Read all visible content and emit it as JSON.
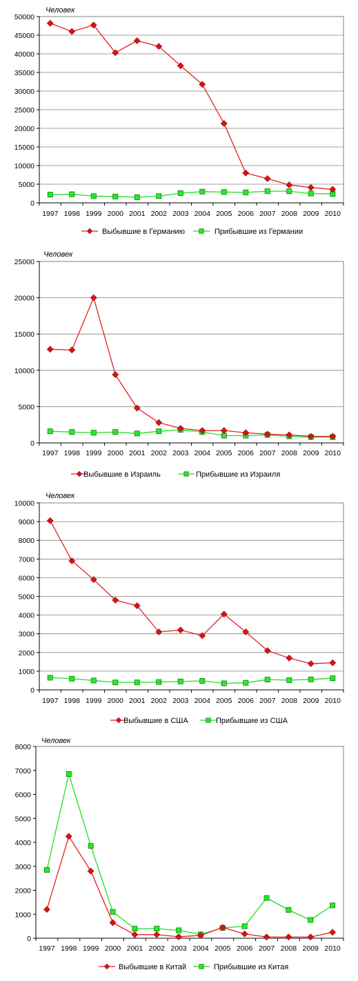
{
  "colors": {
    "series_departed": "#e21f1f",
    "series_arrived": "#22dd22",
    "marker_arrived_fill": "#22ee22",
    "marker_arrived_stroke": "#116611",
    "marker_departed_fill": "#dd1111",
    "marker_departed_stroke": "#881111",
    "plot_border": "#808080",
    "gridline": "#808080"
  },
  "chart_data": [
    {
      "type": "line",
      "ylabel": "Человек",
      "xlabel": "",
      "x": [
        "1997",
        "1998",
        "1999",
        "2000",
        "2001",
        "2002",
        "2003",
        "2004",
        "2005",
        "2006",
        "2007",
        "2008",
        "2009",
        "2010"
      ],
      "yticks": [
        0,
        5000,
        10000,
        15000,
        20000,
        25000,
        30000,
        35000,
        40000,
        45000,
        50000
      ],
      "ylim": [
        0,
        50000
      ],
      "grid": true,
      "legend_position": "bottom",
      "series": [
        {
          "name": "Выбывшие в Германию",
          "marker": "diamond",
          "values": [
            48200,
            46000,
            47700,
            40300,
            43500,
            42000,
            36800,
            31800,
            21300,
            8000,
            6500,
            4800,
            4100,
            3600
          ]
        },
        {
          "name": "Прибывшие  из Германии",
          "marker": "square",
          "values": [
            2200,
            2300,
            1800,
            1700,
            1500,
            1800,
            2600,
            3000,
            2900,
            2800,
            3100,
            3100,
            2500,
            2400
          ]
        }
      ]
    },
    {
      "type": "line",
      "ylabel": "Человек",
      "xlabel": "",
      "x": [
        "1997",
        "1998",
        "1999",
        "2000",
        "2001",
        "2002",
        "2003",
        "2004",
        "2005",
        "2006",
        "2007",
        "2008",
        "2009",
        "2010"
      ],
      "yticks": [
        0,
        5000,
        10000,
        15000,
        20000,
        25000
      ],
      "ylim": [
        0,
        25000
      ],
      "grid": true,
      "legend_position": "bottom",
      "series": [
        {
          "name": "Выбывшие в Израиль",
          "marker": "diamond",
          "values": [
            12900,
            12800,
            20000,
            9400,
            4800,
            2800,
            2000,
            1700,
            1700,
            1400,
            1200,
            1100,
            900,
            900
          ]
        },
        {
          "name": "Прибывшие из Израиля",
          "marker": "square",
          "values": [
            1600,
            1500,
            1400,
            1500,
            1300,
            1600,
            1800,
            1500,
            1000,
            1000,
            1100,
            900,
            800,
            800
          ]
        }
      ]
    },
    {
      "type": "line",
      "ylabel": "Человек",
      "xlabel": "",
      "x": [
        "1997",
        "1998",
        "1999",
        "2000",
        "2001",
        "2002",
        "2003",
        "2004",
        "2005",
        "2006",
        "2007",
        "2008",
        "2009",
        "2010"
      ],
      "yticks": [
        0,
        1000,
        2000,
        3000,
        4000,
        5000,
        6000,
        7000,
        8000,
        9000,
        10000
      ],
      "ylim": [
        0,
        10000
      ],
      "grid": true,
      "legend_position": "bottom",
      "series": [
        {
          "name": "Выбывшие в США",
          "marker": "diamond",
          "values": [
            9050,
            6900,
            5900,
            4800,
            4500,
            3100,
            3200,
            2900,
            4050,
            3100,
            2100,
            1700,
            1400,
            1450
          ]
        },
        {
          "name": "Прибывшие из США",
          "marker": "square",
          "values": [
            650,
            600,
            500,
            400,
            400,
            420,
            450,
            480,
            350,
            380,
            550,
            520,
            560,
            620
          ]
        }
      ]
    },
    {
      "type": "line",
      "ylabel": "Человек",
      "xlabel": "",
      "x": [
        "1997",
        "1998",
        "1999",
        "2000",
        "2001",
        "2002",
        "2003",
        "2004",
        "2005",
        "2006",
        "2007",
        "2008",
        "2009",
        "2010"
      ],
      "yticks": [
        0,
        1000,
        2000,
        3000,
        4000,
        5000,
        6000,
        7000,
        8000
      ],
      "ylim": [
        0,
        8000
      ],
      "grid": false,
      "legend_position": "bottom",
      "series": [
        {
          "name": "Выбывшие в Китай",
          "marker": "diamond",
          "values": [
            1200,
            4250,
            2800,
            650,
            150,
            150,
            60,
            120,
            450,
            180,
            50,
            50,
            50,
            250
          ]
        },
        {
          "name": "Прибывшие из Китая",
          "marker": "square",
          "values": [
            2850,
            6850,
            3850,
            1100,
            400,
            400,
            330,
            160,
            430,
            500,
            1680,
            1180,
            760,
            1370
          ]
        }
      ]
    }
  ]
}
